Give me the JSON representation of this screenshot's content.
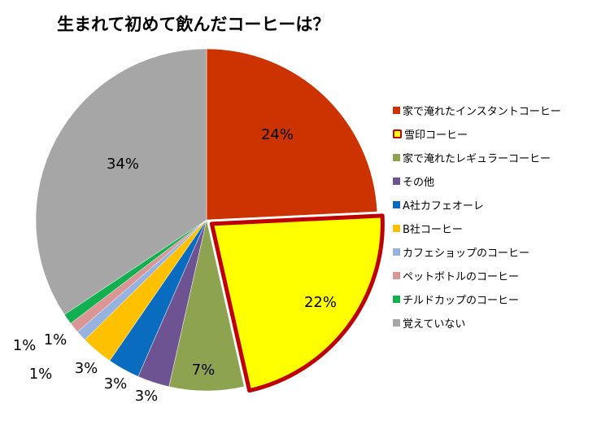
{
  "chart_data": {
    "type": "pie",
    "title": "生まれて初めて飲んだコーヒーは？",
    "slices": [
      {
        "label": "家で淹れたインスタントコーヒー",
        "value": 24,
        "value_label": "24%",
        "color": "#CC3300"
      },
      {
        "label": "雪印コーヒー",
        "value": 22,
        "value_label": "22%",
        "color": "#FFFF00",
        "highlighted": true,
        "highlight_color": "#C00000"
      },
      {
        "label": "家で淹れたレギュラーコーヒー",
        "value": 7,
        "value_label": "7%",
        "color": "#8DA350"
      },
      {
        "label": "その他",
        "value": 3,
        "value_label": "3%",
        "color": "#6E5392"
      },
      {
        "label": "A社カフェオーレ",
        "value": 3,
        "value_label": "3%",
        "color": "#0A6CBF"
      },
      {
        "label": "B社コーヒー",
        "value": 3,
        "value_label": "3%",
        "color": "#FFC000"
      },
      {
        "label": "カフェショップのコーヒー",
        "value": 1,
        "value_label": "1%",
        "color": "#95B3DE"
      },
      {
        "label": "ペットボトルのコーヒー",
        "value": 1,
        "value_label": "1%",
        "color": "#D99694"
      },
      {
        "label": "チルドカップのコーヒー",
        "value": 1,
        "value_label": "1%",
        "color": "#12B050"
      },
      {
        "label": "覚えていない",
        "value": 34,
        "value_label": "34%",
        "color": "#A6A6A6"
      }
    ],
    "legend_placement": "right"
  }
}
